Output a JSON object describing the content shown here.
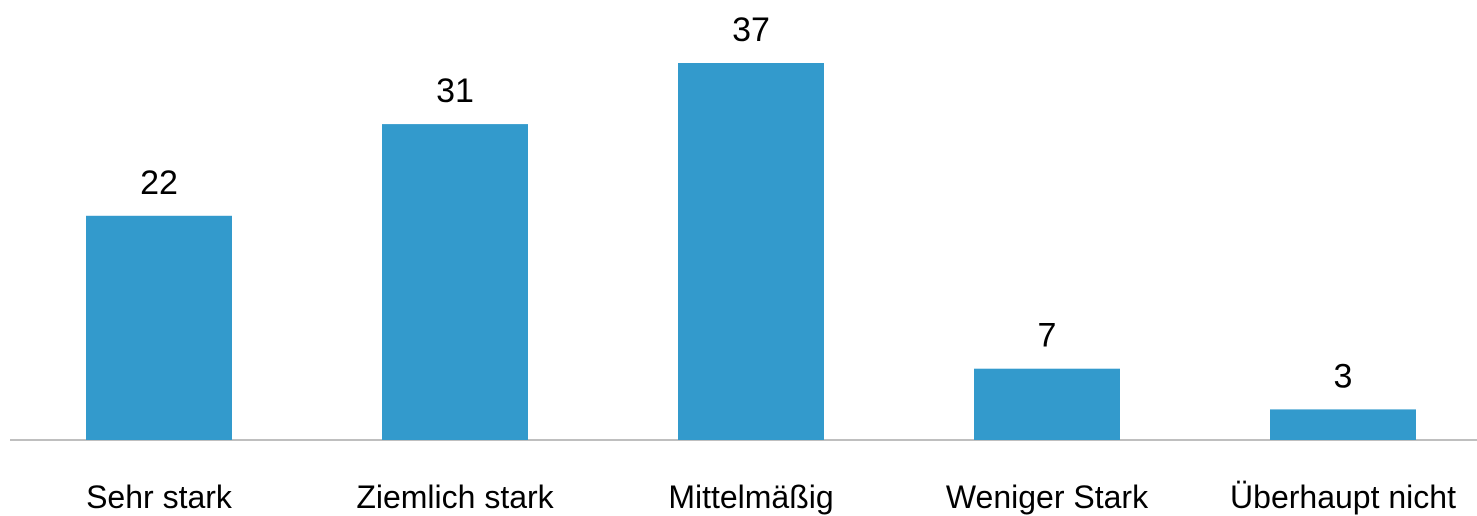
{
  "chart_data": {
    "type": "bar",
    "categories": [
      "Sehr stark",
      "Ziemlich stark",
      "Mittelmäßig",
      "Weniger Stark",
      "Überhaupt nicht"
    ],
    "values": [
      22,
      31,
      37,
      7,
      3
    ],
    "data_labels": [
      "22",
      "31",
      "37",
      "7",
      "3"
    ],
    "title": "",
    "xlabel": "",
    "ylabel": "",
    "ylim": [
      0,
      37
    ],
    "grid": false,
    "legend": "none",
    "colors": {
      "bar": "#339ACC",
      "axis": "#BFBFBF",
      "text": "#000000"
    }
  }
}
